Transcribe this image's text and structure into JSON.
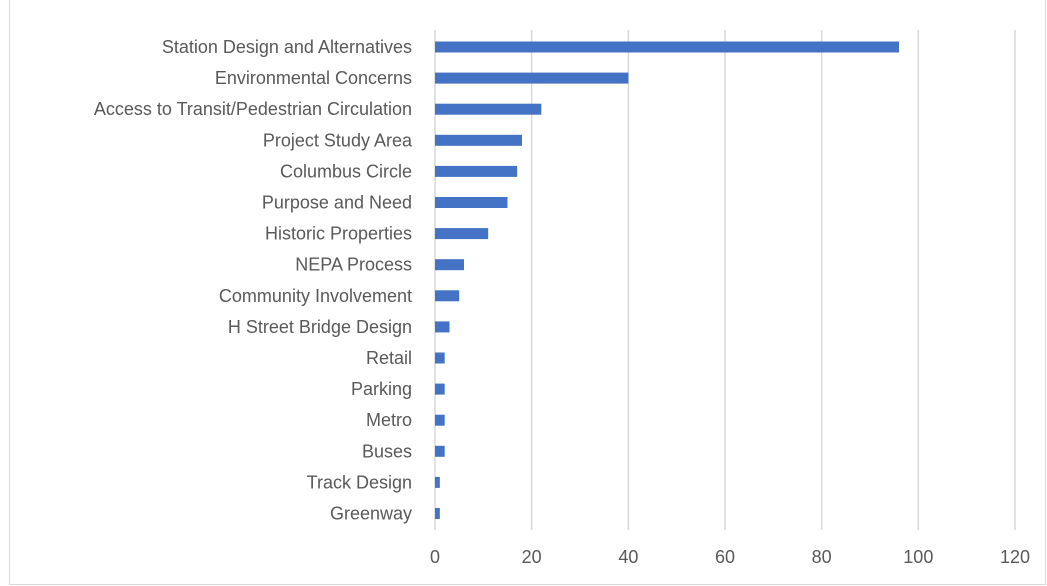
{
  "chart_data": {
    "type": "bar",
    "orientation": "horizontal",
    "title": "",
    "xlabel": "",
    "ylabel": "",
    "categories": [
      "Station Design and Alternatives",
      "Environmental Concerns",
      "Access to Transit/Pedestrian Circulation",
      "Project Study Area",
      "Columbus Circle",
      "Purpose and Need",
      "Historic Properties",
      "NEPA Process",
      "Community Involvement",
      "H Street Bridge Design",
      "Retail",
      "Parking",
      "Metro",
      "Buses",
      "Track Design",
      "Greenway"
    ],
    "values": [
      96,
      40,
      22,
      18,
      17,
      15,
      11,
      6,
      5,
      3,
      2,
      2,
      2,
      2,
      1,
      1
    ],
    "xlim": [
      0,
      120
    ],
    "xticks": [
      "0",
      "20",
      "40",
      "60",
      "80",
      "100",
      "120"
    ],
    "grid": true,
    "legend": "none",
    "bar_color": "#4472c4",
    "grid_color": "#d9d9d9",
    "label_color": "#595959"
  }
}
